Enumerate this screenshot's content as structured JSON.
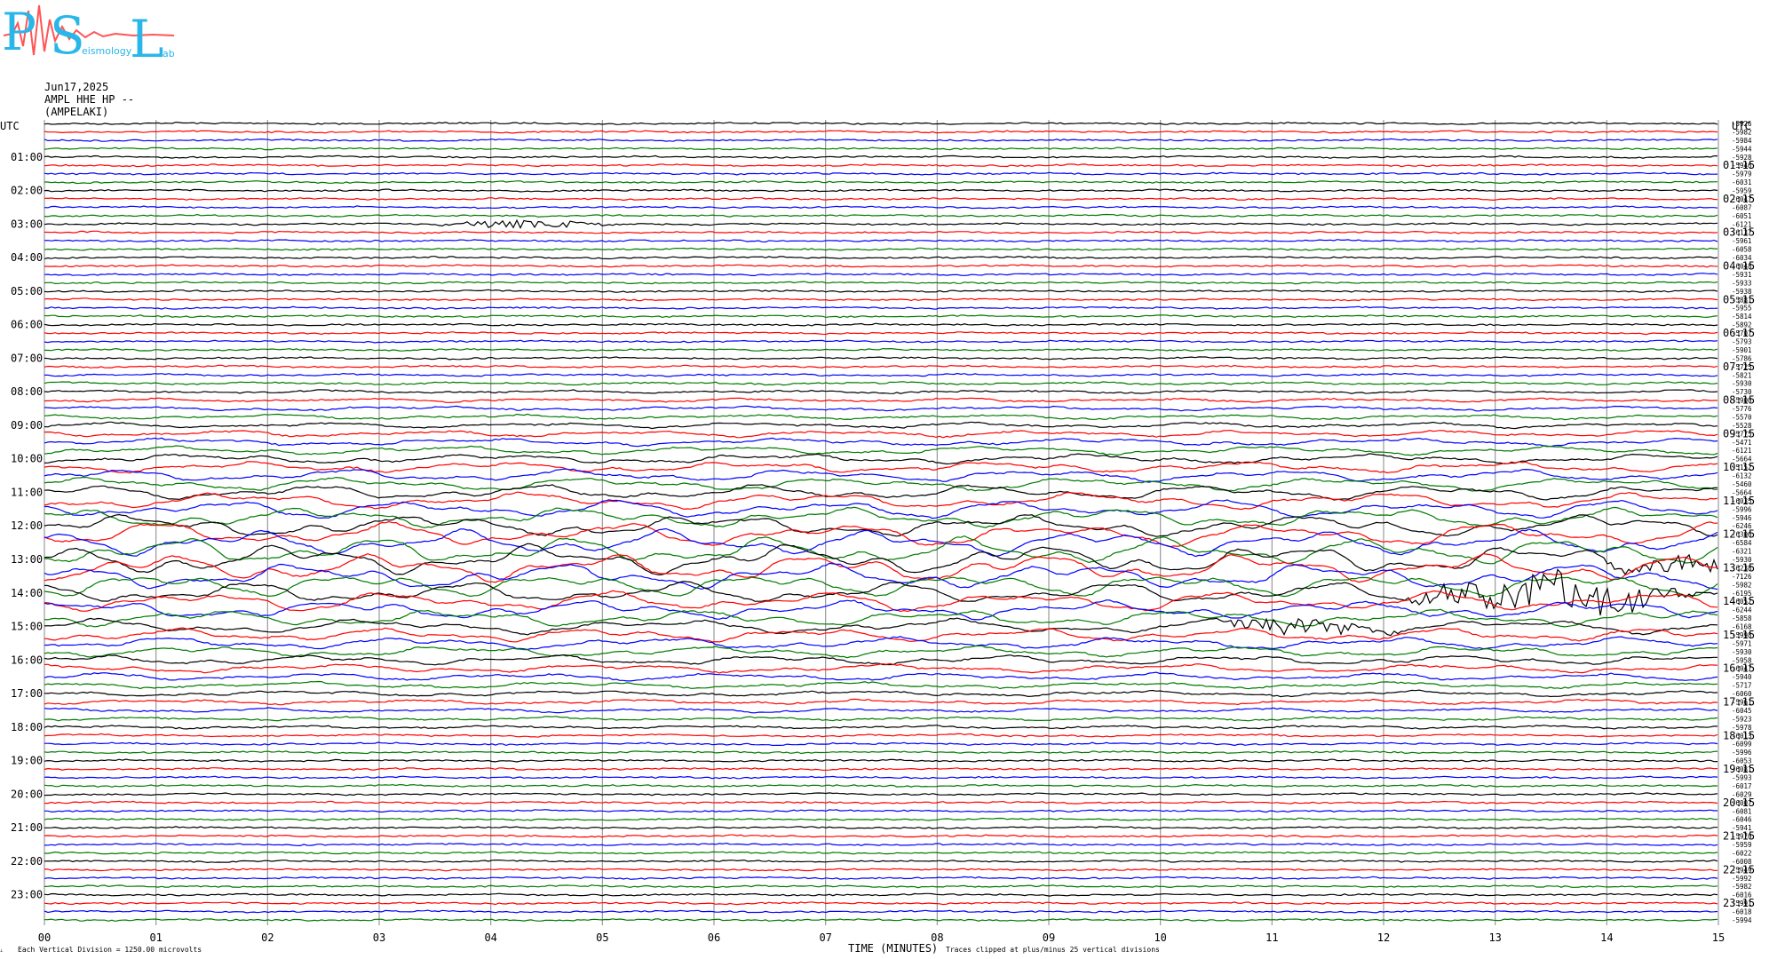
{
  "logo": {
    "letters": [
      "P",
      "S",
      "L"
    ],
    "small_words": [
      "eismology",
      "ab"
    ],
    "colors": {
      "text": "#29b6e8",
      "wave": "#ff5555"
    }
  },
  "header": {
    "date": "Jun17,2025",
    "station": "AMPL HHE HP --",
    "location": "(AMPELAKI)"
  },
  "left_axis": {
    "header": "UTC",
    "labels": [
      "01:00",
      "02:00",
      "03:00",
      "04:00",
      "05:00",
      "06:00",
      "07:00",
      "08:00",
      "09:00",
      "10:00",
      "11:00",
      "12:00",
      "13:00",
      "14:00",
      "15:00",
      "16:00",
      "17:00",
      "18:00",
      "19:00",
      "20:00",
      "21:00",
      "22:00",
      "23:00"
    ]
  },
  "right_axis": {
    "header": "UTC",
    "labels": [
      "01:15",
      "02:15",
      "03:15",
      "04:15",
      "05:15",
      "06:15",
      "07:15",
      "08:15",
      "09:15",
      "10:15",
      "11:15",
      "12:15",
      "13:15",
      "14:15",
      "15:15",
      "16:15",
      "17:15",
      "18:15",
      "19:15",
      "20:15",
      "21:15",
      "22:15",
      "23:15"
    ],
    "trace_values": [
      "-5926",
      "-5982",
      "-5984",
      "-5944",
      "-5928",
      "-5946",
      "-5979",
      "-6031",
      "-5959",
      "-6047",
      "-6087",
      "-6051",
      "-6121",
      "-6137",
      "-5961",
      "-6058",
      "-6034",
      "-6048",
      "-5931",
      "-5933",
      "-5938",
      "-5881",
      "-5955",
      "-5814",
      "-5892",
      "-5707",
      "-5793",
      "-5901",
      "-5786",
      "-5725",
      "-5821",
      "-5930",
      "-5730",
      "-5900",
      "-5776",
      "-5570",
      "-5528",
      "-5775",
      "-5471",
      "-6121",
      "-5664",
      "-5152",
      "-6132",
      "-5460",
      "-5664",
      "-6035",
      "-5996",
      "-5946",
      "-6246",
      "-6306",
      "-6584",
      "-6321",
      "-5930",
      "-6238",
      "-7126",
      "-5982",
      "-6195",
      "-6052",
      "-6244",
      "-5858",
      "-6168",
      "-5998",
      "-5971",
      "-5930",
      "-5958",
      "-6047",
      "-5940",
      "-5717",
      "-6060",
      "-5961",
      "-6045",
      "-5923",
      "-5978",
      "-6013",
      "-6099",
      "-5996",
      "-6053",
      "-6081",
      "-5993",
      "-6017",
      "-6029",
      "-6007",
      "-6081",
      "-6046",
      "-5941",
      "-5970",
      "-5959",
      "-6022",
      "-6008",
      "-5949",
      "-5992",
      "-5982",
      "-6016",
      "-5991",
      "-6018",
      "-5994"
    ]
  },
  "chart_data": {
    "type": "line",
    "title": "",
    "xlabel": "TIME (MINUTES)",
    "ylabel": "UTC",
    "x_ticks": [
      "00",
      "01",
      "02",
      "03",
      "04",
      "05",
      "06",
      "07",
      "08",
      "09",
      "10",
      "11",
      "12",
      "13",
      "14",
      "15"
    ],
    "xlim": [
      0,
      15
    ],
    "traces_per_hour": 4,
    "trace_count": 96,
    "trace_colors": [
      "#000000",
      "#ff0000",
      "#0000ff",
      "#007a00"
    ],
    "grid": true,
    "events": [
      {
        "hour": 3,
        "minute": 4.3,
        "amplitude": "small"
      },
      {
        "hour": 13,
        "minute": 14.8,
        "amplitude": "medium"
      },
      {
        "hour": 14,
        "minute": 13.5,
        "amplitude": "large"
      },
      {
        "hour": 15,
        "minute": 11.3,
        "amplitude": "medium"
      }
    ]
  },
  "footer": {
    "left_note": "Each Vertical Division = 1250.00 microvolts",
    "right_note": "Traces clipped at plus/minus 25 vertical divisions"
  }
}
